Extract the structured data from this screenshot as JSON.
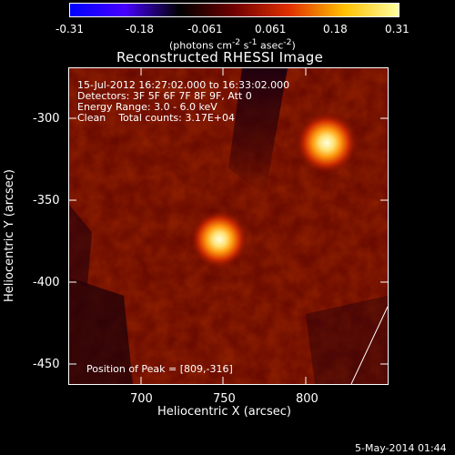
{
  "colorbar": {
    "tick_labels": [
      "-0.31",
      "-0.18",
      "-0.061",
      "0.061",
      "0.18",
      "0.31"
    ],
    "colormap": [
      "#0000ff",
      "#4800ff",
      "#000000",
      "#700000",
      "#e03000",
      "#ffc000",
      "#ffffa0"
    ],
    "unit_label_html": "(photons cm<sup>-2</sup> s<sup>-1</sup> asec<sup>-2</sup>)"
  },
  "title": "Reconstructed RHESSI Image",
  "info": {
    "line1": "15-Jul-2012 16:27:02.000 to 16:33:02.000",
    "line2": "Detectors: 3F 5F 6F 7F 8F 9F, Att 0",
    "line3": "Energy Range: 3.0 - 6.0 keV",
    "line4": "Clean    Total counts: 3.17E+04"
  },
  "peak_label": "Position of Peak = [809,-316]",
  "axes": {
    "xlabel": "Heliocentric X (arcsec)",
    "ylabel": "Heliocentric Y (arcsec)",
    "x_ticks": [
      "700",
      "750",
      "800"
    ],
    "y_ticks": [
      "-300",
      "-350",
      "-400",
      "-450"
    ]
  },
  "timestamp": "5-May-2014 01:44",
  "colors": {
    "background": "#000000",
    "low": "#3a0000",
    "mid": "#b01800",
    "high": "#ffffe0"
  },
  "sources": [
    {
      "name": "peak-source",
      "x_arcsec": 809,
      "y_arcsec": -316
    },
    {
      "name": "secondary-source",
      "x_arcsec": 746,
      "y_arcsec": -374
    }
  ]
}
